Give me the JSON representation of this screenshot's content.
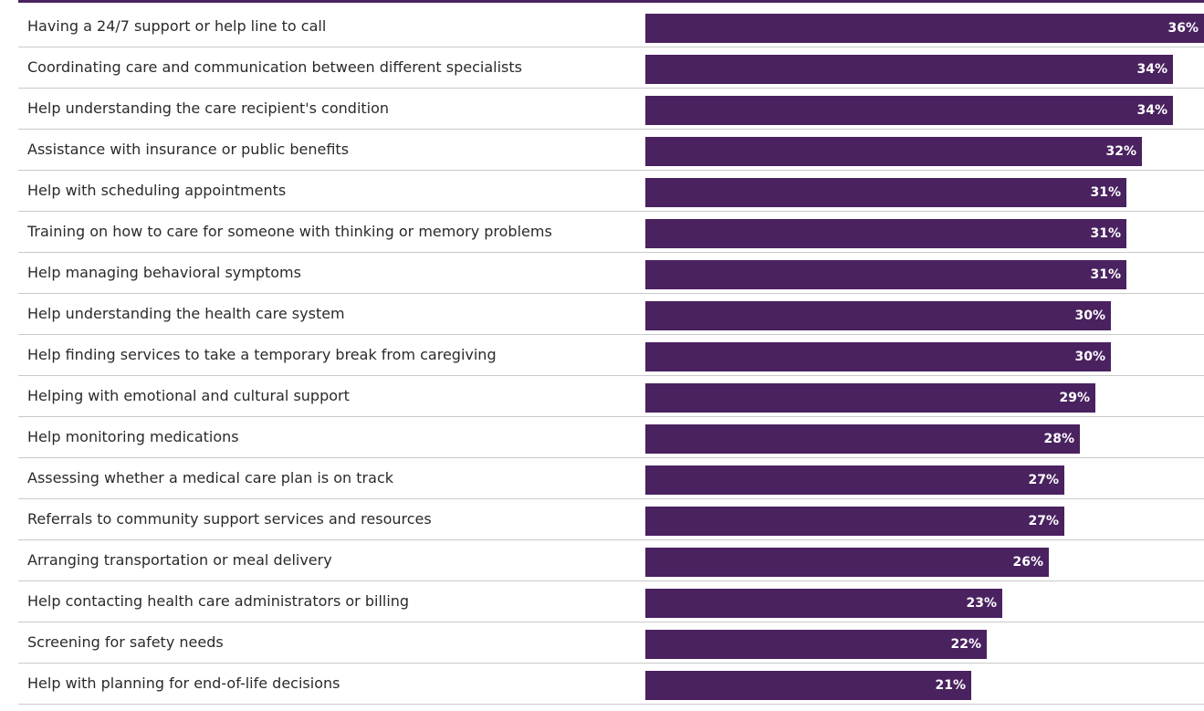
{
  "chart_data": {
    "type": "bar",
    "orientation": "horizontal",
    "bar_color": "#4a2260",
    "label_text_color": "#2a2a2a",
    "value_text_color": "#ffffff",
    "categories": [
      "Having a 24/7 support or help line to call",
      "Coordinating care and communication between different specialists",
      "Help understanding the care recipient's condition",
      "Assistance with insurance or public benefits",
      "Help with scheduling appointments",
      "Training on how to care for someone with thinking or memory problems",
      "Help managing behavioral symptoms",
      "Help understanding the health care system",
      "Help finding services to take a temporary break from caregiving",
      "Helping with emotional and cultural support",
      "Help monitoring medications",
      "Assessing whether a medical care plan is on track",
      "Referrals to community support services and resources",
      "Arranging transportation or meal delivery",
      "Help contacting health care administrators or billing",
      "Screening for safety needs",
      "Help with planning for end-of-life decisions"
    ],
    "values": [
      36,
      34,
      34,
      32,
      31,
      31,
      31,
      30,
      30,
      29,
      28,
      27,
      27,
      26,
      23,
      22,
      21
    ],
    "value_labels": [
      "36%",
      "34%",
      "34%",
      "32%",
      "31%",
      "31%",
      "31%",
      "30%",
      "30%",
      "29%",
      "28%",
      "27%",
      "27%",
      "26%",
      "23%",
      "22%",
      "21%"
    ],
    "xlim": [
      0,
      36
    ]
  }
}
